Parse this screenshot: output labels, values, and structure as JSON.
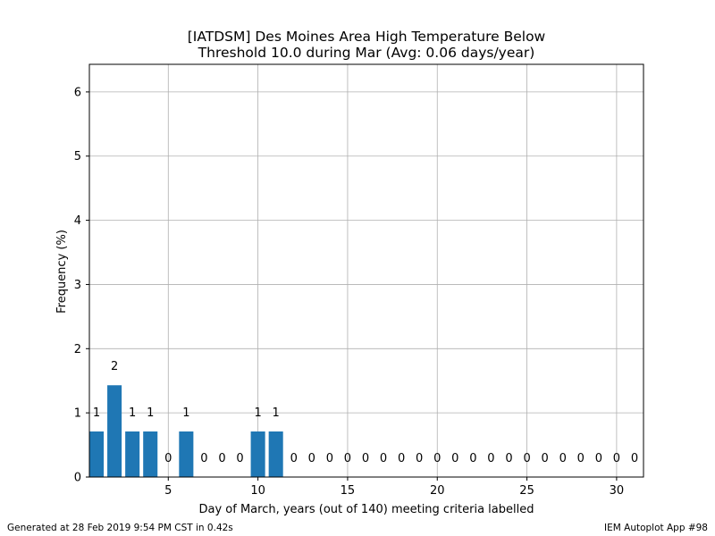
{
  "chart_data": {
    "type": "bar",
    "title": [
      "[IATDSM] Des Moines Area High Temperature Below",
      "Threshold 10.0 during Mar (Avg: 0.06 days/year)"
    ],
    "xlabel": "Day of March, years (out of 140) meeting criteria labelled",
    "ylabel": "Frequency (%)",
    "xlim": [
      0.6,
      31.5
    ],
    "ylim": [
      0,
      6.43
    ],
    "xticks": [
      5,
      10,
      15,
      20,
      25,
      30
    ],
    "yticks": [
      0,
      1,
      2,
      3,
      4,
      5,
      6
    ],
    "grid": true,
    "bar_color": "#1f77b4",
    "days": [
      1,
      2,
      3,
      4,
      5,
      6,
      7,
      8,
      9,
      10,
      11,
      12,
      13,
      14,
      15,
      16,
      17,
      18,
      19,
      20,
      21,
      22,
      23,
      24,
      25,
      26,
      27,
      28,
      29,
      30,
      31
    ],
    "years": [
      1,
      2,
      1,
      1,
      0,
      1,
      0,
      0,
      0,
      1,
      1,
      0,
      0,
      0,
      0,
      0,
      0,
      0,
      0,
      0,
      0,
      0,
      0,
      0,
      0,
      0,
      0,
      0,
      0,
      0,
      0
    ],
    "frequency_pct": [
      0.71,
      1.43,
      0.71,
      0.71,
      0,
      0.71,
      0,
      0,
      0,
      0.71,
      0.71,
      0,
      0,
      0,
      0,
      0,
      0,
      0,
      0,
      0,
      0,
      0,
      0,
      0,
      0,
      0,
      0,
      0,
      0,
      0,
      0
    ]
  },
  "footer": {
    "generated": "Generated at 28 Feb 2019 9:54 PM CST in 0.42s",
    "app": "IEM Autoplot App #98"
  }
}
